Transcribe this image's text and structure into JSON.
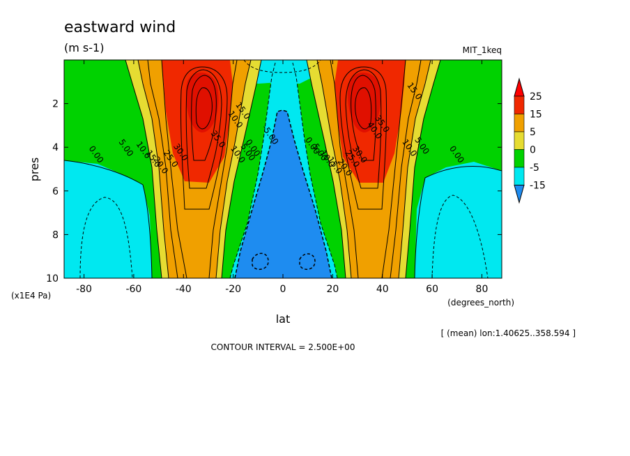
{
  "chart_data": {
    "type": "contour",
    "title": "eastward wind",
    "units": "(m s-1)",
    "dataset": "MIT_1keq",
    "xlabel": "lat",
    "x_units": "(degrees_north)",
    "ylabel": "pres",
    "y_units": "(x1E4 Pa)",
    "xlim": [
      -88,
      88
    ],
    "ylim": [
      10,
      0
    ],
    "x_ticks": [
      -80,
      -60,
      -40,
      -20,
      0,
      20,
      40,
      60,
      80
    ],
    "y_ticks": [
      2,
      4,
      6,
      8,
      10
    ],
    "averaging_note": "[ (mean) lon:1.40625..358.594 ]",
    "contour_interval_text": "CONTOUR INTERVAL = 2.500E+00",
    "colorbar": {
      "levels": [
        -15,
        -5,
        0,
        5,
        15,
        25
      ],
      "labels": [
        "25",
        "15",
        "5",
        "0",
        "-5",
        "-15"
      ],
      "colors": [
        "#1e8cf0",
        "#00e8f0",
        "#00d200",
        "#e6dc32",
        "#f0a000",
        "#f02800",
        "#ff0000"
      ],
      "extend": "both"
    },
    "jets": [
      {
        "lat": -33,
        "pres": 2.1,
        "max_value": 40
      },
      {
        "lat": 30,
        "pres": 2.1,
        "max_value": 40
      }
    ],
    "contour_labels": [
      {
        "text": "0.00",
        "lat": -76,
        "pres": 4.4
      },
      {
        "text": "5.00",
        "lat": -64,
        "pres": 4.1
      },
      {
        "text": "10.0",
        "lat": -57,
        "pres": 4.2
      },
      {
        "text": "15.0",
        "lat": -53,
        "pres": 4.6
      },
      {
        "text": "20.0",
        "lat": -50,
        "pres": 4.9
      },
      {
        "text": "25.0",
        "lat": -46,
        "pres": 4.6
      },
      {
        "text": "30.0",
        "lat": -42,
        "pres": 4.3
      },
      {
        "text": "35.0",
        "lat": -27,
        "pres": 3.7
      },
      {
        "text": "10.0",
        "lat": -20,
        "pres": 2.8
      },
      {
        "text": "15.0",
        "lat": -17,
        "pres": 2.4
      },
      {
        "text": "10.0",
        "lat": -19,
        "pres": 4.4
      },
      {
        "text": "5.00",
        "lat": -15,
        "pres": 4.3
      },
      {
        "text": "0.00",
        "lat": -13,
        "pres": 4.1
      },
      {
        "text": "-5.00",
        "lat": -6,
        "pres": 3.5
      },
      {
        "text": "0.00",
        "lat": 11,
        "pres": 4.0
      },
      {
        "text": "5.00",
        "lat": 14,
        "pres": 4.3
      },
      {
        "text": "10.0",
        "lat": 17,
        "pres": 4.6
      },
      {
        "text": "15.0",
        "lat": 20,
        "pres": 4.9
      },
      {
        "text": "20.0",
        "lat": 24,
        "pres": 5.0
      },
      {
        "text": "25.0",
        "lat": 27,
        "pres": 4.6
      },
      {
        "text": "30.0",
        "lat": 30,
        "pres": 4.4
      },
      {
        "text": "40.0",
        "lat": 36,
        "pres": 3.3
      },
      {
        "text": "35.0",
        "lat": 39,
        "pres": 3.0
      },
      {
        "text": "15.0",
        "lat": 52,
        "pres": 1.5
      },
      {
        "text": "10.0",
        "lat": 50,
        "pres": 4.1
      },
      {
        "text": "5.00",
        "lat": 55,
        "pres": 4.0
      },
      {
        "text": "0.00",
        "lat": 69,
        "pres": 4.4
      }
    ]
  }
}
